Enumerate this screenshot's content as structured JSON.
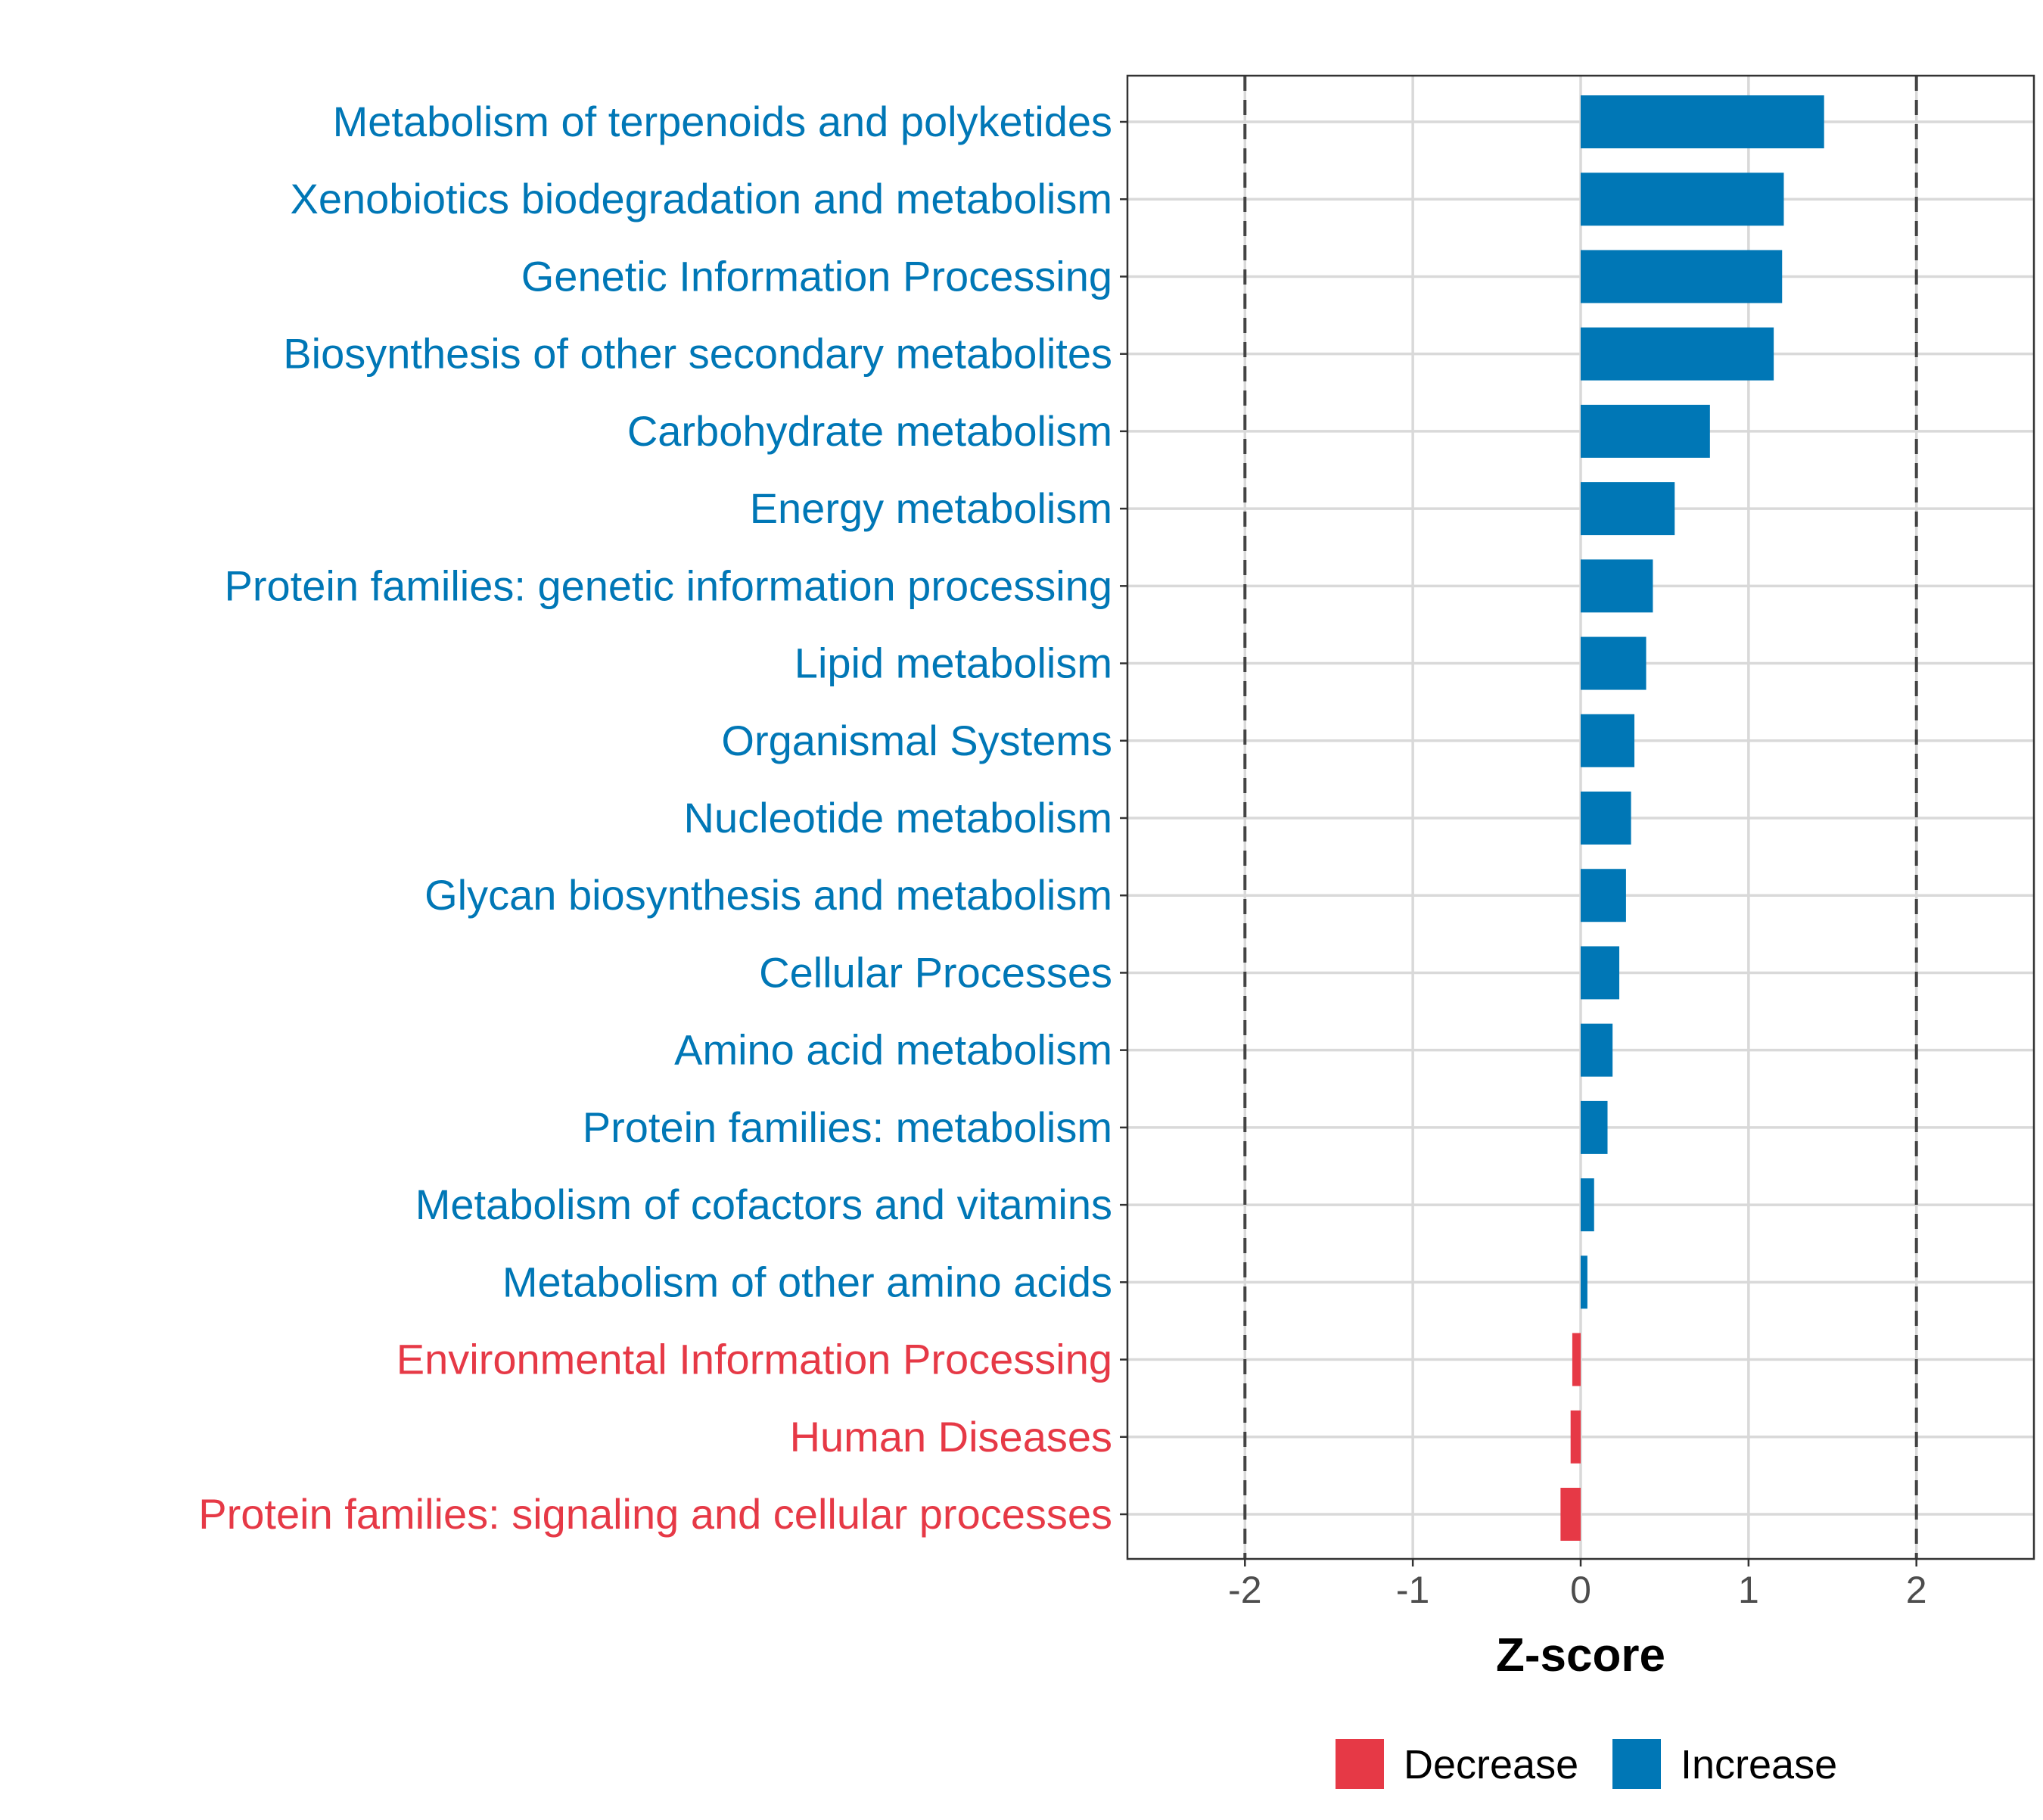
{
  "chart_data": {
    "type": "bar",
    "orientation": "horizontal",
    "title": "",
    "xlabel": "Z-score",
    "ylabel": "",
    "xlim": [
      -2.7,
      2.7
    ],
    "xticks": [
      -2,
      -1,
      0,
      1,
      2
    ],
    "xtick_labels": [
      "-2",
      "-1",
      "0",
      "1",
      "2"
    ],
    "reference_lines": [
      -2,
      2
    ],
    "grid": true,
    "categories": [
      "Metabolism of terpenoids and polyketides",
      "Xenobiotics biodegradation and metabolism",
      "Genetic Information Processing",
      "Biosynthesis of other secondary metabolites",
      "Carbohydrate metabolism",
      "Energy metabolism",
      "Protein families: genetic information processing",
      "Lipid metabolism",
      "Organismal Systems",
      "Nucleotide metabolism",
      "Glycan biosynthesis and metabolism",
      "Cellular Processes",
      "Amino acid metabolism",
      "Protein families: metabolism",
      "Metabolism of cofactors and vitamins",
      "Metabolism of other amino acids",
      "Environmental Information Processing",
      "Human Diseases",
      "Protein families: signaling and cellular processes"
    ],
    "values": [
      1.45,
      1.21,
      1.2,
      1.15,
      0.77,
      0.56,
      0.43,
      0.39,
      0.32,
      0.3,
      0.27,
      0.23,
      0.19,
      0.16,
      0.08,
      0.04,
      -0.05,
      -0.06,
      -0.12
    ],
    "legend": {
      "position": "bottom",
      "entries": [
        {
          "label": "Decrease",
          "color": "#E63946"
        },
        {
          "label": "Increase",
          "color": "#0077B6"
        }
      ]
    },
    "colors": {
      "Decrease": "#E63946",
      "Increase": "#0077B6"
    }
  }
}
